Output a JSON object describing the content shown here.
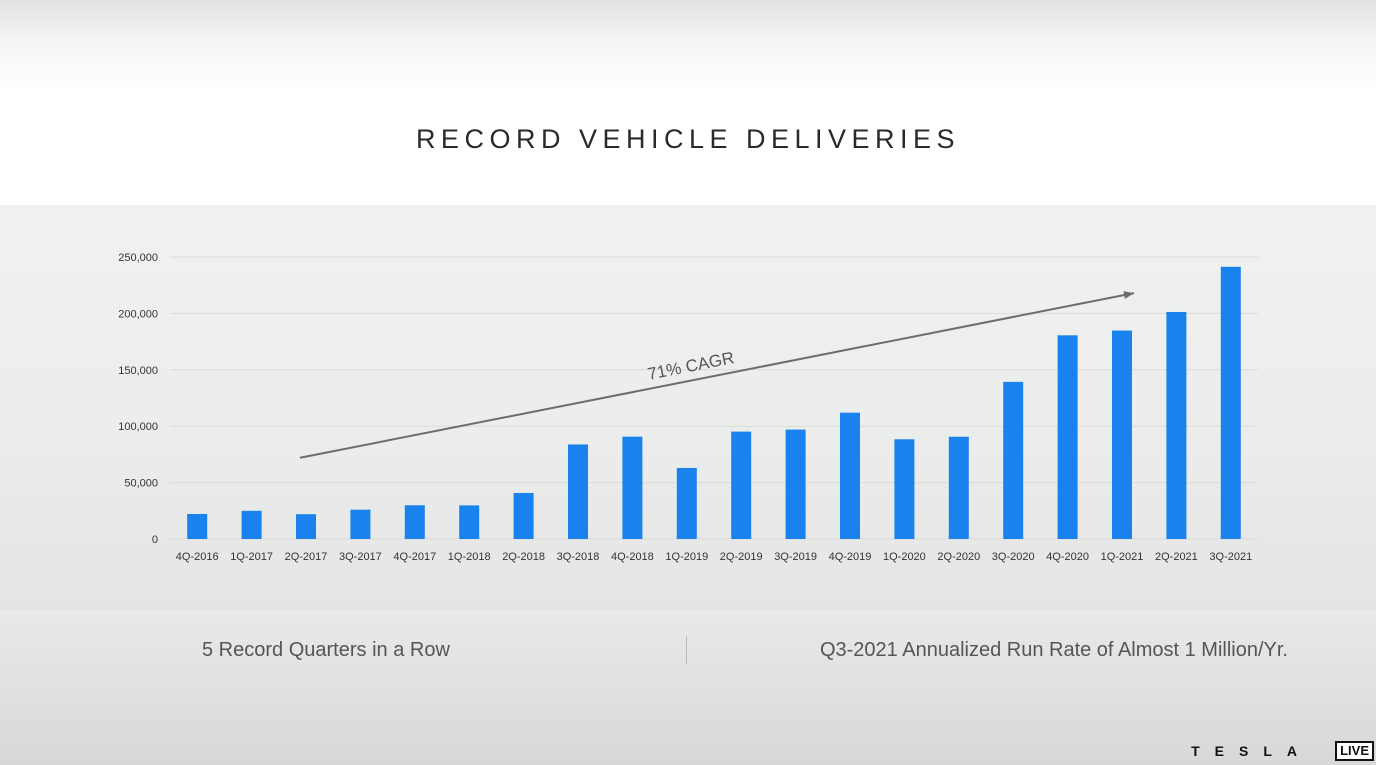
{
  "slide": {
    "title": "RECORD VEHICLE DELIVERIES",
    "stat_left": "5 Record Quarters in a Row",
    "stat_right": "Q3-2021 Annualized Run Rate of Almost 1 Million/Yr."
  },
  "branding": {
    "logo_text": "TESLA",
    "live_badge": "LIVE"
  },
  "chart_data": {
    "type": "bar",
    "title": "",
    "xlabel": "",
    "ylabel": "",
    "categories": [
      "4Q-2016",
      "1Q-2017",
      "2Q-2017",
      "3Q-2017",
      "4Q-2017",
      "1Q-2018",
      "2Q-2018",
      "3Q-2018",
      "4Q-2018",
      "1Q-2019",
      "2Q-2019",
      "3Q-2019",
      "4Q-2019",
      "1Q-2020",
      "2Q-2020",
      "3Q-2020",
      "4Q-2020",
      "1Q-2021",
      "2Q-2021",
      "3Q-2021"
    ],
    "values": [
      22200,
      25000,
      22000,
      26000,
      29900,
      29800,
      40800,
      83800,
      90700,
      63000,
      95200,
      97000,
      112000,
      88400,
      90650,
      139300,
      180570,
      184800,
      201250,
      241300
    ],
    "ylim": [
      0,
      250000
    ],
    "yticks": [
      0,
      50000,
      100000,
      150000,
      200000,
      250000
    ],
    "ytick_labels": [
      "0",
      "50,000",
      "100,000",
      "150,000",
      "200,000",
      "250,000"
    ],
    "grid": true,
    "bar_color": "#1a82ec",
    "annotation": {
      "text": "71% CAGR",
      "arrow_from": {
        "category": "2Q-2017",
        "value": 72000
      },
      "arrow_to": {
        "category": "1Q-2021",
        "value": 218000
      }
    }
  }
}
